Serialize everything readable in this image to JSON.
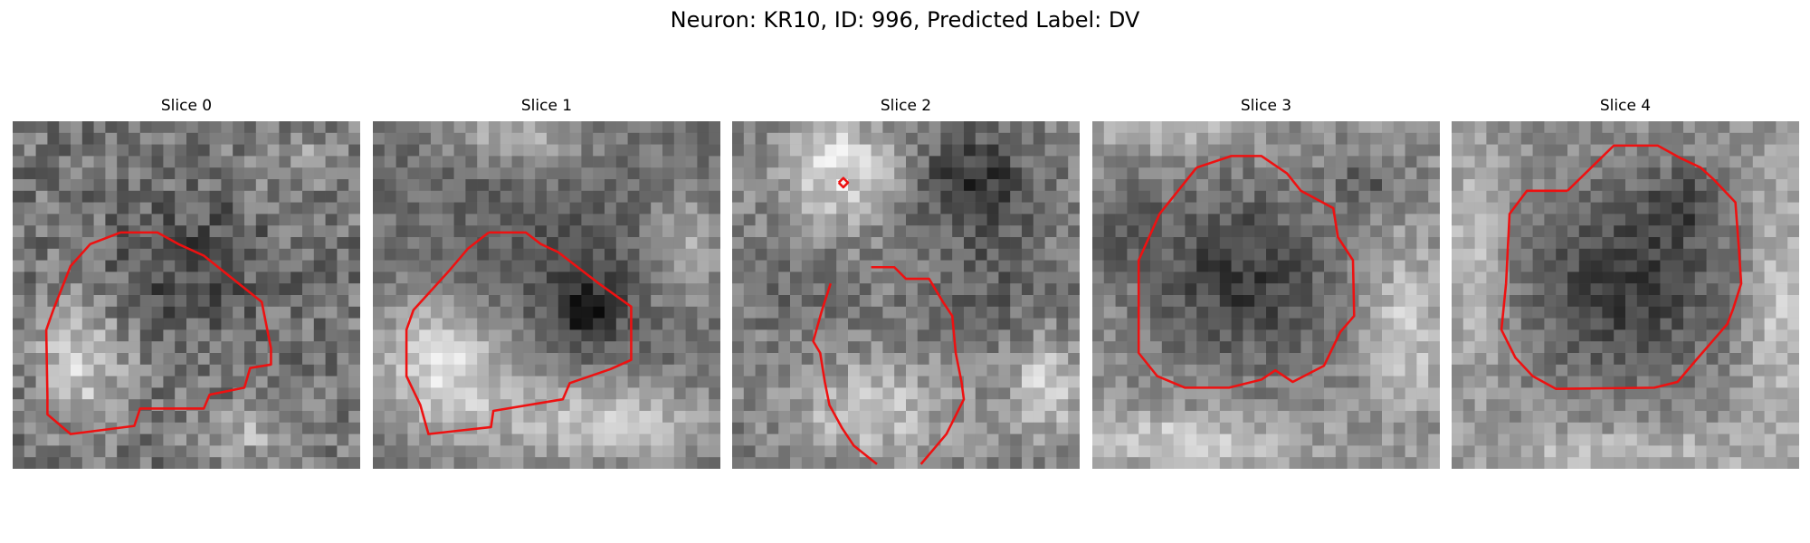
{
  "figure": {
    "title": "Neuron: KR10, ID: 996, Predicted Label: DV"
  },
  "panels": [
    {
      "title": "Slice 0"
    },
    {
      "title": "Slice 1"
    },
    {
      "title": "Slice 2"
    },
    {
      "title": "Slice 3"
    },
    {
      "title": "Slice 4"
    }
  ],
  "colors": {
    "contour": "#ee1111",
    "background": "#ffffff",
    "colormap": "grayscale"
  }
}
